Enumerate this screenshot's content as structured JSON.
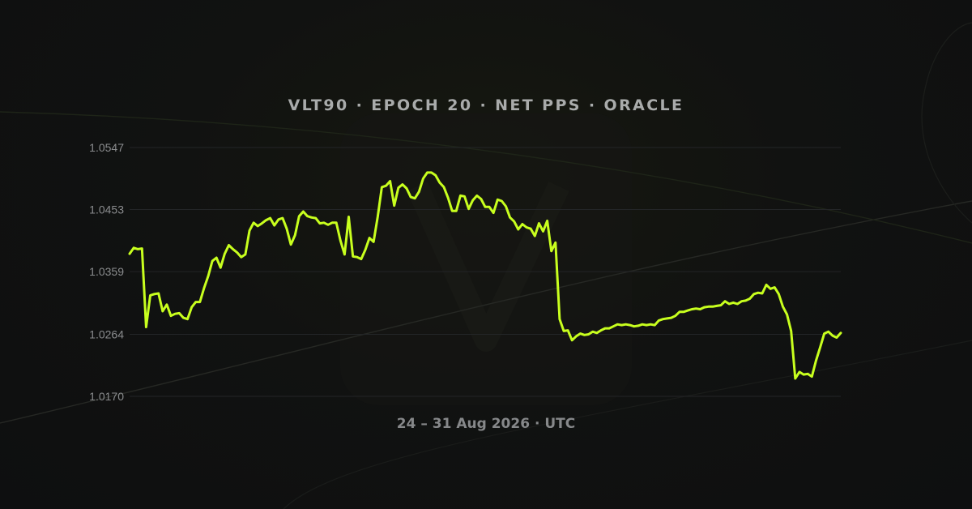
{
  "chart_data": {
    "type": "line",
    "title": "VLT90 · EPOCH 20 · NET PPS · ORACLE",
    "footer": "24 – 31 Aug 2026 · UTC",
    "x_range": [
      "24 Aug 2026",
      "31 Aug 2026"
    ],
    "ytick_labels": [
      "1.0547",
      "1.0453",
      "1.0359",
      "1.0264",
      "1.0170"
    ],
    "yticks": [
      1.0547,
      1.0453,
      1.0359,
      1.0264,
      1.017
    ],
    "ylim": [
      1.017,
      1.0547
    ],
    "grid": true,
    "legend": false,
    "series": [
      {
        "color": "#c8ff1e",
        "values": [
          1.0386,
          1.0395,
          1.0393,
          1.0394,
          1.0275,
          1.0323,
          1.0325,
          1.0326,
          1.0299,
          1.0309,
          1.0292,
          1.0295,
          1.0296,
          1.0289,
          1.0287,
          1.0305,
          1.0313,
          1.0313,
          1.0334,
          1.0352,
          1.0375,
          1.038,
          1.0365,
          1.0386,
          1.0399,
          1.0393,
          1.0388,
          1.0381,
          1.0385,
          1.0421,
          1.0433,
          1.0428,
          1.0432,
          1.0437,
          1.044,
          1.0429,
          1.0438,
          1.044,
          1.0424,
          1.04,
          1.0414,
          1.0443,
          1.045,
          1.0443,
          1.0441,
          1.044,
          1.0432,
          1.0433,
          1.043,
          1.0433,
          1.0433,
          1.0406,
          1.0385,
          1.0442,
          1.0382,
          1.0381,
          1.0378,
          1.0392,
          1.041,
          1.0404,
          1.0442,
          1.0487,
          1.0489,
          1.0496,
          1.0459,
          1.0486,
          1.0491,
          1.0485,
          1.0472,
          1.047,
          1.048,
          1.05,
          1.0509,
          1.0509,
          1.0505,
          1.0494,
          1.0487,
          1.0471,
          1.0451,
          1.0451,
          1.0474,
          1.0473,
          1.0454,
          1.0467,
          1.0474,
          1.0469,
          1.0457,
          1.0457,
          1.0448,
          1.0468,
          1.0466,
          1.0458,
          1.0441,
          1.0435,
          1.0423,
          1.0431,
          1.0426,
          1.0424,
          1.0413,
          1.0432,
          1.042,
          1.0436,
          1.039,
          1.0403,
          1.0287,
          1.0269,
          1.027,
          1.0255,
          1.0261,
          1.0265,
          1.0263,
          1.0264,
          1.0268,
          1.0266,
          1.027,
          1.0273,
          1.0273,
          1.0276,
          1.0279,
          1.0278,
          1.0279,
          1.0278,
          1.0276,
          1.0277,
          1.0279,
          1.0278,
          1.0279,
          1.0278,
          1.0285,
          1.0287,
          1.0288,
          1.0289,
          1.0292,
          1.0298,
          1.0298,
          1.03,
          1.0302,
          1.0303,
          1.0302,
          1.0305,
          1.0306,
          1.0306,
          1.0307,
          1.0308,
          1.0314,
          1.031,
          1.0312,
          1.031,
          1.0314,
          1.0315,
          1.0318,
          1.0325,
          1.0327,
          1.0326,
          1.0339,
          1.0333,
          1.0335,
          1.0325,
          1.0306,
          1.0294,
          1.0269,
          1.0197,
          1.0207,
          1.0203,
          1.0204,
          1.02,
          1.0224,
          1.0244,
          1.0265,
          1.0268,
          1.0262,
          1.0259,
          1.0266
        ]
      }
    ]
  },
  "decor": {
    "background_color": "#0f1011",
    "line_color": "#c8ff1e",
    "grid_color": "#232527"
  }
}
